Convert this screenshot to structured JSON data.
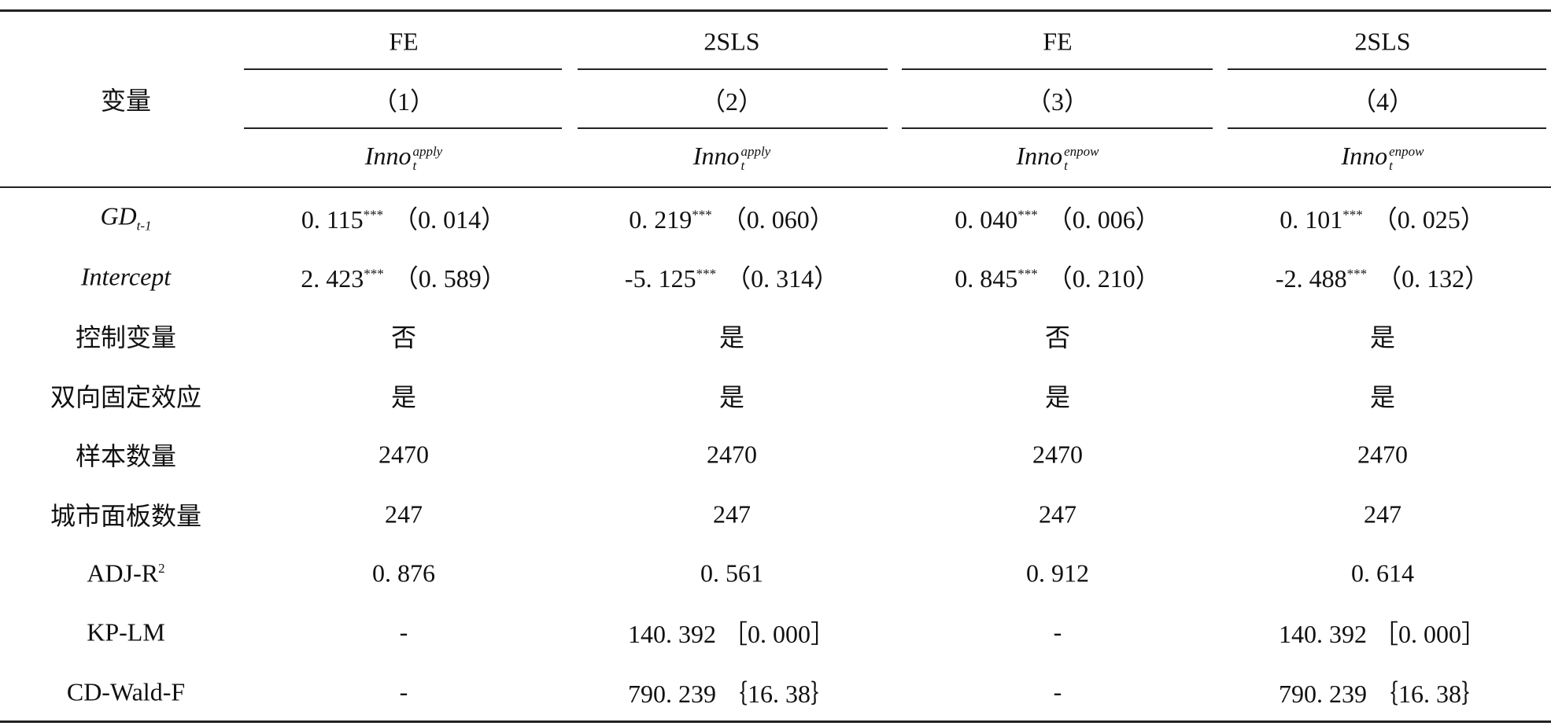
{
  "header": {
    "variable_label": "变量",
    "methods": [
      "FE",
      "2SLS",
      "FE",
      "2SLS"
    ],
    "columns": [
      "（1）",
      "（2）",
      "（3）",
      "（4）"
    ],
    "dependent": [
      {
        "base": "Inno",
        "sub": "t",
        "sup": "apply"
      },
      {
        "base": "Inno",
        "sub": "t",
        "sup": "apply"
      },
      {
        "base": "Inno",
        "sub": "t",
        "sup": "enpow"
      },
      {
        "base": "Inno",
        "sub": "t",
        "sup": "enpow"
      }
    ]
  },
  "table": {
    "rows": [
      {
        "label": {
          "base": "GD",
          "sub": "t-1"
        },
        "cells": [
          {
            "value": "0. 115",
            "stars": "***",
            "se": "（0. 014）"
          },
          {
            "value": "0. 219",
            "stars": "***",
            "se": "（0. 060）"
          },
          {
            "value": "0. 040",
            "stars": "***",
            "se": "（0. 006）"
          },
          {
            "value": "0. 101",
            "stars": "***",
            "se": "（0. 025）"
          }
        ]
      },
      {
        "label": {
          "base": "Intercept"
        },
        "cells": [
          {
            "value": "2. 423",
            "stars": "***",
            "se": "（0. 589）"
          },
          {
            "value": "-5. 125",
            "stars": "***",
            "se": "（0. 314）"
          },
          {
            "value": "0. 845",
            "stars": "***",
            "se": "（0. 210）"
          },
          {
            "value": "-2. 488",
            "stars": "***",
            "se": "（0. 132）"
          }
        ]
      },
      {
        "label": "控制变量",
        "cells": [
          "否",
          "是",
          "否",
          "是"
        ]
      },
      {
        "label": "双向固定效应",
        "cells": [
          "是",
          "是",
          "是",
          "是"
        ]
      },
      {
        "label": "样本数量",
        "cells": [
          "2470",
          "2470",
          "2470",
          "2470"
        ]
      },
      {
        "label": "城市面板数量",
        "cells": [
          "247",
          "247",
          "247",
          "247"
        ]
      },
      {
        "label": {
          "base": "ADJ-R",
          "sup": "2"
        },
        "cells": [
          "0. 876",
          "0. 561",
          "0. 912",
          "0. 614"
        ]
      },
      {
        "label": "KP-LM",
        "cells": [
          "-",
          "140. 392 ［0. 000］",
          "-",
          "140. 392 ［0. 000］"
        ]
      },
      {
        "label": "CD-Wald-F",
        "cells": [
          "-",
          "790. 239 ｛16. 38｝",
          "-",
          "790. 239 ｛16. 38｝"
        ]
      }
    ]
  }
}
